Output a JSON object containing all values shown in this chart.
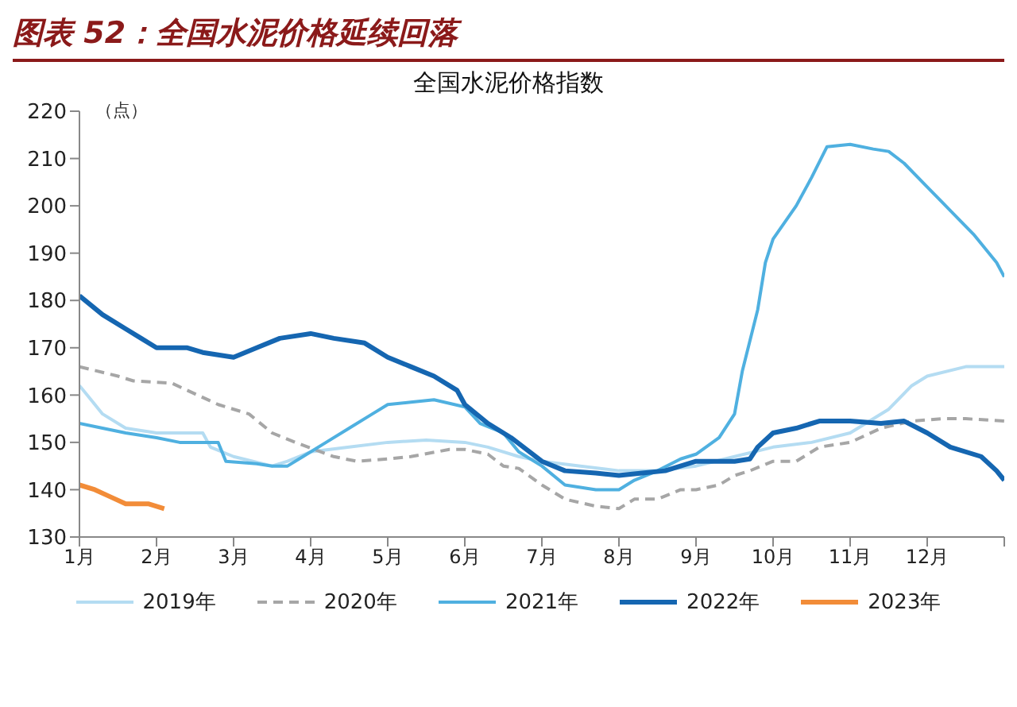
{
  "chart_data": {
    "type": "line",
    "title": "图表 52：全国水泥价格延续回落",
    "subtitle": "全国水泥价格指数",
    "ylabel": "（点）",
    "xlim": [
      1,
      13
    ],
    "xticks": [
      {
        "value": 1,
        "label": "1月"
      },
      {
        "value": 2,
        "label": "2月"
      },
      {
        "value": 3,
        "label": "3月"
      },
      {
        "value": 4,
        "label": "4月"
      },
      {
        "value": 5,
        "label": "5月"
      },
      {
        "value": 6,
        "label": "6月"
      },
      {
        "value": 7,
        "label": "7月"
      },
      {
        "value": 8,
        "label": "8月"
      },
      {
        "value": 9,
        "label": "9月"
      },
      {
        "value": 10,
        "label": "10月"
      },
      {
        "value": 11,
        "label": "11月"
      },
      {
        "value": 12,
        "label": "12月"
      },
      {
        "value": 13,
        "label": null
      }
    ],
    "ylim": [
      130,
      220
    ],
    "yticks": [
      130,
      140,
      150,
      160,
      170,
      180,
      190,
      200,
      210,
      220
    ],
    "grid": false,
    "legend": "bottom",
    "marker": "none",
    "series": [
      {
        "name": "2019年",
        "color": "#b4dcf2",
        "line_style": "solid",
        "x": [
          1,
          1.1,
          1.3,
          1.6,
          2,
          2.6,
          2.7,
          3,
          3.5,
          3.7,
          4,
          4.5,
          5,
          5.5,
          6,
          6.3,
          6.7,
          7,
          7.5,
          8,
          8.5,
          9,
          9.5,
          10,
          10.5,
          11,
          11.5,
          11.8,
          12,
          12.5,
          13
        ],
        "values": [
          162,
          160,
          156,
          153,
          152,
          152,
          149,
          147,
          145,
          146,
          148,
          149,
          150,
          150.5,
          150,
          149,
          147,
          146,
          145,
          144,
          144,
          145,
          147,
          149,
          150,
          152,
          157,
          162,
          164,
          166,
          166
        ]
      },
      {
        "name": "2020年",
        "color": "#a6a6a6",
        "line_style": "dashed",
        "x": [
          1,
          1.5,
          1.7,
          2.2,
          2.4,
          2.8,
          3.2,
          3.5,
          3.8,
          4.3,
          4.6,
          5,
          5.3,
          5.8,
          6,
          6.3,
          6.5,
          6.7,
          7,
          7.3,
          7.7,
          8,
          8.2,
          8.5,
          8.8,
          9,
          9.3,
          9.5,
          9.7,
          10,
          10.3,
          10.6,
          11,
          11.4,
          11.8,
          12.2,
          12.5,
          13
        ],
        "values": [
          166,
          164,
          163,
          162.5,
          161,
          158,
          156,
          152,
          150,
          147,
          146,
          146.5,
          147,
          148.5,
          148.5,
          147.5,
          145,
          144.5,
          141,
          138,
          136.5,
          136,
          138,
          138,
          140,
          140,
          141,
          143,
          144,
          146,
          146,
          149,
          150,
          153,
          154.5,
          155,
          155,
          154.5
        ]
      },
      {
        "name": "2021年",
        "color": "#4fb0e0",
        "line_style": "solid",
        "x": [
          1,
          1.3,
          1.6,
          2,
          2.3,
          2.8,
          2.9,
          3.3,
          3.5,
          3.7,
          3.9,
          4.2,
          4.5,
          4.8,
          5,
          5.3,
          5.6,
          6,
          6.2,
          6.5,
          6.7,
          7,
          7.3,
          7.7,
          8,
          8.2,
          8.5,
          8.8,
          9,
          9.3,
          9.5,
          9.6,
          9.8,
          9.9,
          10,
          10.3,
          10.5,
          10.7,
          11,
          11.3,
          11.5,
          11.7,
          12,
          12.3,
          12.6,
          12.9,
          13
        ],
        "values": [
          154,
          153,
          152,
          151,
          150,
          150,
          146,
          145.5,
          145,
          145,
          147,
          150,
          153,
          156,
          158,
          158.5,
          159,
          157.5,
          154,
          152,
          148,
          145,
          141,
          140,
          140,
          142,
          144,
          146.5,
          147.5,
          151,
          156,
          165,
          178,
          188,
          193,
          200,
          206,
          212.5,
          213,
          212,
          211.5,
          209,
          204,
          199,
          194,
          188,
          185
        ]
      },
      {
        "name": "2022年",
        "color": "#1566b1",
        "line_style": "solid",
        "x": [
          1,
          1.3,
          1.6,
          1.8,
          2,
          2.4,
          2.6,
          3,
          3.3,
          3.6,
          4,
          4.3,
          4.7,
          5,
          5.3,
          5.6,
          5.9,
          6,
          6.3,
          6.6,
          7,
          7.3,
          7.7,
          8,
          8.3,
          8.6,
          9,
          9.5,
          9.7,
          9.8,
          10,
          10.3,
          10.6,
          11,
          11.4,
          11.7,
          12,
          12.3,
          12.7,
          12.9,
          13
        ],
        "values": [
          181,
          177,
          174,
          172,
          170,
          170,
          169,
          168,
          170,
          172,
          173,
          172,
          171,
          168,
          166,
          164,
          161,
          158,
          154,
          151,
          146,
          144,
          143.5,
          143,
          143.5,
          144,
          146,
          146,
          146.5,
          149,
          152,
          153,
          154.5,
          154.5,
          154,
          154.5,
          152,
          149,
          147,
          144,
          142
        ]
      },
      {
        "name": "2023年",
        "color": "#f28c38",
        "line_style": "solid",
        "x": [
          1,
          1.2,
          1.4,
          1.6,
          1.9,
          2,
          2.1
        ],
        "values": [
          141,
          140,
          138.5,
          137,
          137,
          136.5,
          136
        ]
      }
    ]
  }
}
